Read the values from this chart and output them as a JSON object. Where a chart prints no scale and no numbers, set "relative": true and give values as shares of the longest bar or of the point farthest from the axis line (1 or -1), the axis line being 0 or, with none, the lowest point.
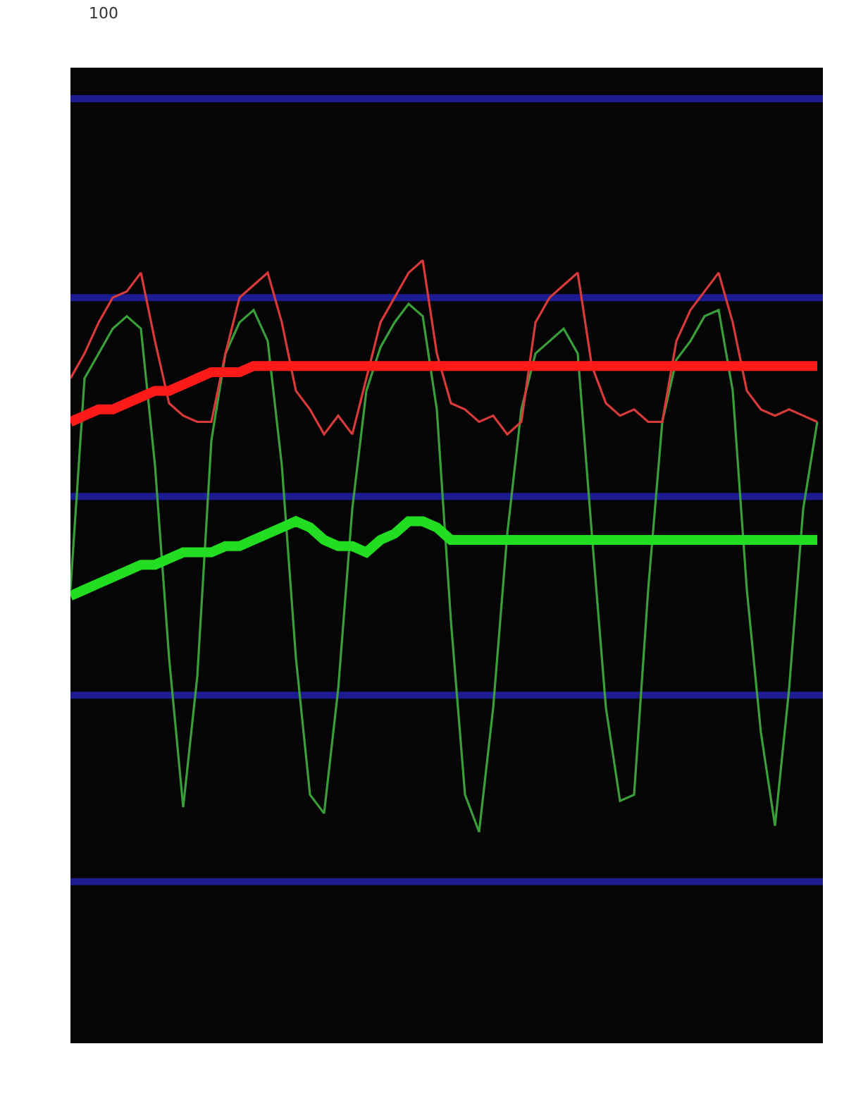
{
  "chart_data": {
    "type": "line",
    "relative": true,
    "marker": "none",
    "line_style": "solid",
    "annotations": [
      "100"
    ],
    "categories": [
      null,
      null,
      null,
      null,
      null,
      null,
      null,
      null,
      null,
      null,
      null,
      null,
      null,
      null,
      null,
      null,
      null,
      null,
      null,
      null,
      null,
      null,
      null,
      null,
      null,
      null,
      null,
      null,
      null,
      null,
      null,
      null,
      null,
      null,
      null,
      null,
      null,
      null,
      null,
      null,
      null,
      null,
      null,
      null,
      null,
      null,
      null,
      null,
      null,
      null,
      null,
      null,
      null,
      null
    ],
    "series": [
      {
        "color": "#3a9e3a",
        "values": [
          0.47,
          0.81,
          0.85,
          0.89,
          0.91,
          0.89,
          0.67,
          0.36,
          0.12,
          0.33,
          0.71,
          0.85,
          0.9,
          0.92,
          0.87,
          0.67,
          0.36,
          0.14,
          0.11,
          0.31,
          0.6,
          0.79,
          0.86,
          0.9,
          0.93,
          0.91,
          0.76,
          0.42,
          0.14,
          0.08,
          0.28,
          0.56,
          0.76,
          0.85,
          0.87,
          0.89,
          0.85,
          0.56,
          0.28,
          0.13,
          0.14,
          0.47,
          0.74,
          0.84,
          0.87,
          0.91,
          0.92,
          0.79,
          0.47,
          0.24,
          0.09,
          0.31,
          0.6,
          0.74
        ]
      },
      {
        "color": "#d83a3a",
        "values": [
          0.81,
          0.85,
          0.9,
          0.94,
          0.95,
          0.98,
          0.87,
          0.77,
          0.75,
          0.74,
          0.74,
          0.85,
          0.94,
          0.96,
          0.98,
          0.9,
          0.79,
          0.76,
          0.72,
          0.75,
          0.72,
          0.81,
          0.9,
          0.94,
          0.98,
          1.0,
          0.85,
          0.77,
          0.76,
          0.74,
          0.75,
          0.72,
          0.74,
          0.9,
          0.94,
          0.96,
          0.98,
          0.83,
          0.77,
          0.75,
          0.76,
          0.74,
          0.74,
          0.87,
          0.92,
          0.95,
          0.98,
          0.9,
          0.79,
          0.76,
          0.75,
          0.76,
          0.75,
          0.74
        ]
      },
      {
        "color": "#ff1a1a",
        "values": [
          0.74,
          0.75,
          0.76,
          0.76,
          0.77,
          0.78,
          0.79,
          0.79,
          0.8,
          0.81,
          0.82,
          0.82,
          0.82,
          0.83,
          0.83,
          0.83,
          0.83,
          0.83,
          0.83,
          0.83,
          0.83,
          0.83,
          0.83,
          0.83,
          0.83,
          0.83,
          0.83,
          0.83,
          0.83,
          0.83,
          0.83,
          0.83,
          0.83,
          0.83,
          0.83,
          0.83,
          0.83,
          0.83,
          0.83,
          0.83,
          0.83,
          0.83,
          0.83,
          0.83,
          0.83,
          0.83,
          0.83,
          0.83,
          0.83,
          0.83,
          0.83,
          0.83,
          0.83,
          0.83
        ]
      },
      {
        "color": "#22dd22",
        "values": [
          0.46,
          0.47,
          0.48,
          0.49,
          0.5,
          0.51,
          0.51,
          0.52,
          0.53,
          0.53,
          0.53,
          0.54,
          0.54,
          0.55,
          0.56,
          0.57,
          0.58,
          0.57,
          0.55,
          0.54,
          0.54,
          0.53,
          0.55,
          0.56,
          0.58,
          0.58,
          0.57,
          0.55,
          0.55,
          0.55,
          0.55,
          0.55,
          0.55,
          0.55,
          0.55,
          0.55,
          0.55,
          0.55,
          0.55,
          0.55,
          0.55,
          0.55,
          0.55,
          0.55,
          0.55,
          0.55,
          0.55,
          0.55,
          0.55,
          0.55,
          0.55,
          0.55,
          0.55,
          0.55
        ]
      }
    ],
    "ref_lines": [
      {
        "axis": "y",
        "value": 1.26,
        "color": "#1c1c90"
      },
      {
        "axis": "y",
        "value": 0.94,
        "color": "#1c1c90"
      },
      {
        "axis": "y",
        "value": 0.62,
        "color": "#1c1c90"
      },
      {
        "axis": "y",
        "value": 0.3,
        "color": "#1c1c90"
      },
      {
        "axis": "y",
        "value": 0,
        "color": "#1c1c90"
      }
    ]
  }
}
